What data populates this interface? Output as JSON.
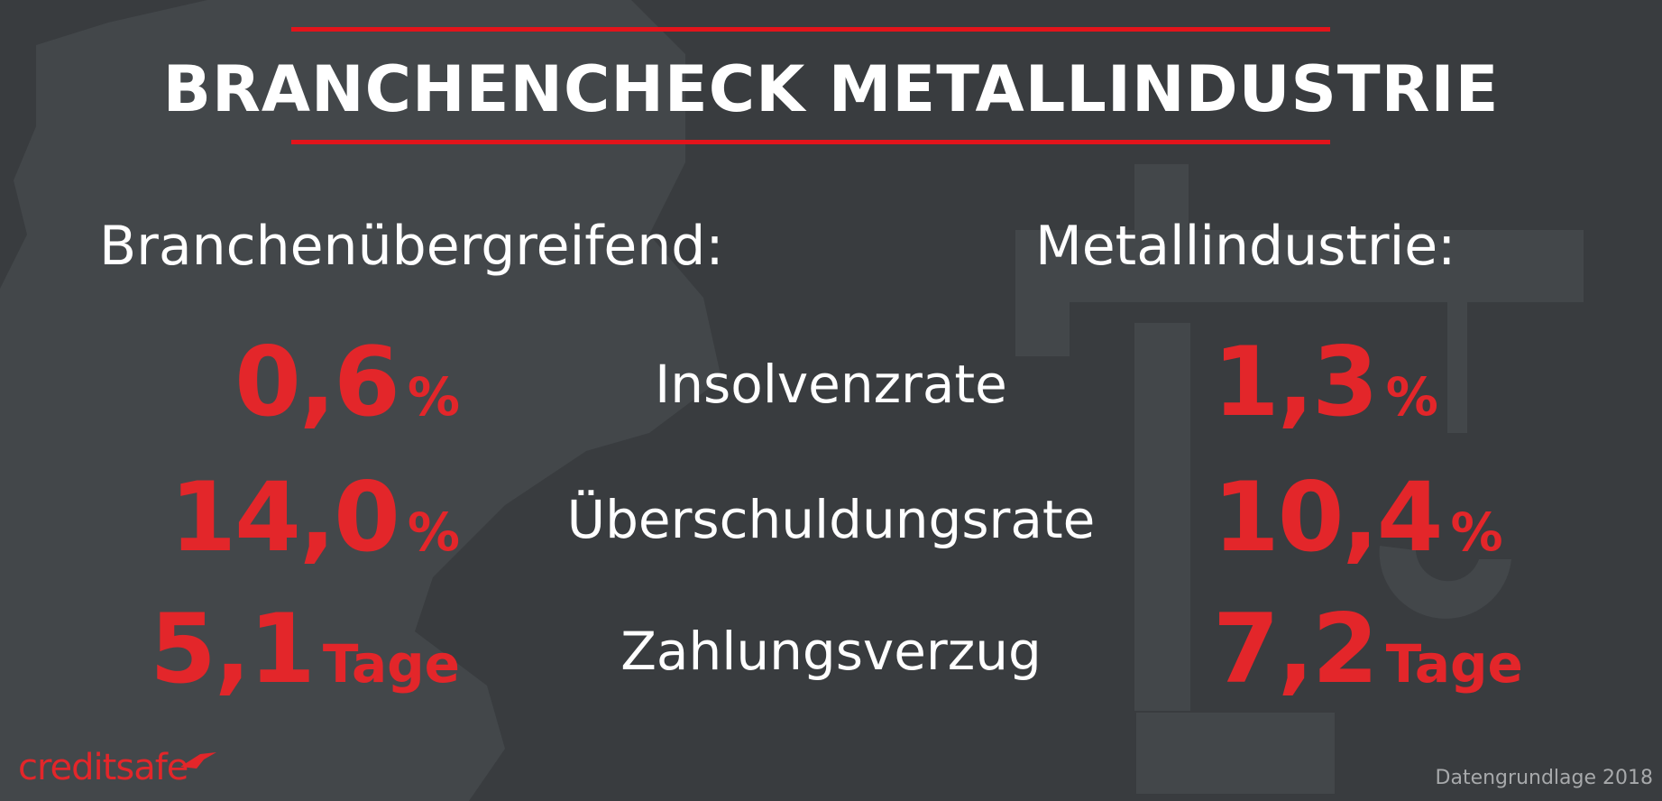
{
  "title": "BRANCHENCHECK METALLINDUSTRIE",
  "columns": {
    "left": "Branchenübergreifend:",
    "right": "Metallindustrie:"
  },
  "rows": [
    {
      "metric": "Insolvenzrate",
      "left_value": "0,6",
      "left_unit": "%",
      "right_value": "1,3",
      "right_unit": "%"
    },
    {
      "metric": "Überschuldungsrate",
      "left_value": "14,0",
      "left_unit": "%",
      "right_value": "10,4",
      "right_unit": "%"
    },
    {
      "metric": "Zahlungsverzug",
      "left_value": "5,1",
      "left_unit": "Tage",
      "right_value": "7,2",
      "right_unit": "Tage"
    }
  ],
  "logo": "creditsafe",
  "footer": "Datengrundlage 2018",
  "colors": {
    "background": "#393c3f",
    "accent": "#e3141b",
    "text": "#ffffff"
  }
}
